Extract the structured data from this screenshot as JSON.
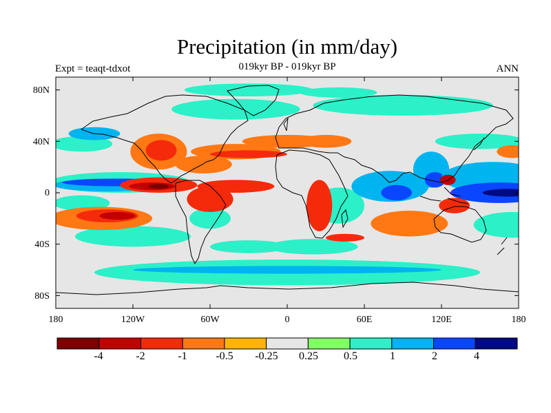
{
  "title": "Precipitation (in mm/day)",
  "subtitle": "019kyr BP - 019kyr BP",
  "left_label": "Expt = teaqt-tdxot",
  "right_label": "ANN",
  "lat_ticks": [
    "80N",
    "40N",
    "0",
    "40S",
    "80S"
  ],
  "lon_ticks": [
    "180",
    "120W",
    "60W",
    "0",
    "60E",
    "120E",
    "180"
  ],
  "colorbar": {
    "colors": [
      "#7d0000",
      "#c30000",
      "#f52a0a",
      "#ff7814",
      "#ffb400",
      "#e6e6e6",
      "#82ff64",
      "#2cf0c8",
      "#00b4f0",
      "#0a46ff",
      "#000a82"
    ],
    "labels": [
      "-4",
      "-2",
      "-1",
      "-0.5",
      "-0.25",
      "0.25",
      "0.5",
      "1",
      "2",
      "4"
    ]
  },
  "chart_data": {
    "type": "heatmap",
    "title": "Precipitation (in mm/day)",
    "subtitle": "019kyr BP - 019kyr BP",
    "experiment": "Expt = teaqt-tdxot",
    "season": "ANN",
    "x_ticks": [
      "180",
      "120W",
      "60W",
      "0",
      "60E",
      "120E",
      "180"
    ],
    "y_ticks": [
      "80N",
      "40N",
      "0",
      "40S",
      "80S"
    ],
    "xlim": [
      -180,
      180
    ],
    "ylim": [
      -90,
      90
    ],
    "levels": [
      -4,
      -2,
      -1,
      -0.5,
      -0.25,
      0.25,
      0.5,
      1,
      2,
      4
    ],
    "anomalies": [
      {
        "lon": -160,
        "lat": 38,
        "rx": 24,
        "ry": 6,
        "level": 0.5
      },
      {
        "lon": -150,
        "lat": 46,
        "rx": 20,
        "ry": 5,
        "level": 1
      },
      {
        "lon": -30,
        "lat": 80,
        "rx": 50,
        "ry": 5,
        "level": 0.5
      },
      {
        "lon": -40,
        "lat": 65,
        "rx": 50,
        "ry": 8,
        "level": 0.5
      },
      {
        "lon": 90,
        "lat": 68,
        "rx": 70,
        "ry": 8,
        "level": 0.5
      },
      {
        "lon": 40,
        "lat": 78,
        "rx": 30,
        "ry": 4,
        "level": 0.5
      },
      {
        "lon": -130,
        "lat": 8,
        "rx": 55,
        "ry": 8,
        "level": 0.5
      },
      {
        "lon": -140,
        "lat": 6,
        "rx": 42,
        "ry": 5,
        "level": 1
      },
      {
        "lon": -130,
        "lat": 8,
        "rx": 45,
        "ry": 3,
        "level": 2
      },
      {
        "lon": -100,
        "lat": 9,
        "rx": 12,
        "ry": 2,
        "level": 4
      },
      {
        "lon": -160,
        "lat": -8,
        "rx": 22,
        "ry": 6,
        "level": 0.5
      },
      {
        "lon": -120,
        "lat": -34,
        "rx": 45,
        "ry": 8,
        "level": 0.5
      },
      {
        "lon": -60,
        "lat": -20,
        "rx": 16,
        "ry": 8,
        "level": 0.5
      },
      {
        "lon": -30,
        "lat": -42,
        "rx": 30,
        "ry": 5,
        "level": 0.5
      },
      {
        "lon": 20,
        "lat": -42,
        "rx": 35,
        "ry": 6,
        "level": 0.5
      },
      {
        "lon": 40,
        "lat": -10,
        "rx": 20,
        "ry": 14,
        "level": 0.5
      },
      {
        "lon": 80,
        "lat": 5,
        "rx": 30,
        "ry": 12,
        "level": 1
      },
      {
        "lon": 85,
        "lat": 0,
        "rx": 12,
        "ry": 6,
        "level": 2
      },
      {
        "lon": 112,
        "lat": 18,
        "rx": 14,
        "ry": 14,
        "level": 1
      },
      {
        "lon": 115,
        "lat": 10,
        "rx": 8,
        "ry": 6,
        "level": 2
      },
      {
        "lon": 160,
        "lat": 12,
        "rx": 40,
        "ry": 12,
        "level": 1
      },
      {
        "lon": 165,
        "lat": 0,
        "rx": 38,
        "ry": 8,
        "level": 2
      },
      {
        "lon": 172,
        "lat": 0,
        "rx": 20,
        "ry": 3,
        "level": 4
      },
      {
        "lon": 150,
        "lat": 40,
        "rx": 35,
        "ry": 6,
        "level": 0.5
      },
      {
        "lon": 175,
        "lat": -25,
        "rx": 30,
        "ry": 10,
        "level": 0.5
      },
      {
        "lon": 0,
        "lat": -62,
        "rx": 150,
        "ry": 10,
        "level": 0.5
      },
      {
        "lon": 0,
        "lat": -60,
        "rx": 120,
        "ry": 3,
        "level": 1
      },
      {
        "lon": -100,
        "lat": 32,
        "rx": 22,
        "ry": 14,
        "level": -0.5
      },
      {
        "lon": -98,
        "lat": 33,
        "rx": 12,
        "ry": 8,
        "level": -1
      },
      {
        "lon": -65,
        "lat": 22,
        "rx": 22,
        "ry": 7,
        "level": -0.5
      },
      {
        "lon": -40,
        "lat": 32,
        "rx": 35,
        "ry": 6,
        "level": -0.5
      },
      {
        "lon": -30,
        "lat": 30,
        "rx": 30,
        "ry": 3,
        "level": -1
      },
      {
        "lon": 0,
        "lat": 40,
        "rx": 35,
        "ry": 5,
        "level": -0.5
      },
      {
        "lon": 30,
        "lat": 40,
        "rx": 20,
        "ry": 5,
        "level": -0.5
      },
      {
        "lon": -100,
        "lat": 6,
        "rx": 30,
        "ry": 6,
        "level": -1
      },
      {
        "lon": -105,
        "lat": 5,
        "rx": 18,
        "ry": 3,
        "level": -2
      },
      {
        "lon": -100,
        "lat": 5,
        "rx": 8,
        "ry": 2,
        "level": -4
      },
      {
        "lon": -40,
        "lat": 5,
        "rx": 30,
        "ry": 5,
        "level": -1
      },
      {
        "lon": -60,
        "lat": -5,
        "rx": 18,
        "ry": 10,
        "level": -1
      },
      {
        "lon": -145,
        "lat": -20,
        "rx": 40,
        "ry": 9,
        "level": -0.5
      },
      {
        "lon": -140,
        "lat": -18,
        "rx": 24,
        "ry": 5,
        "level": -1
      },
      {
        "lon": -132,
        "lat": -18,
        "rx": 14,
        "ry": 3,
        "level": -2
      },
      {
        "lon": 25,
        "lat": -10,
        "rx": 10,
        "ry": 20,
        "level": -1
      },
      {
        "lon": 45,
        "lat": -35,
        "rx": 15,
        "ry": 3,
        "level": -1
      },
      {
        "lon": 95,
        "lat": -24,
        "rx": 30,
        "ry": 10,
        "level": -0.5
      },
      {
        "lon": 130,
        "lat": -10,
        "rx": 12,
        "ry": 6,
        "level": -1
      },
      {
        "lon": 125,
        "lat": 10,
        "rx": 6,
        "ry": 4,
        "level": -2
      },
      {
        "lon": 175,
        "lat": 32,
        "rx": 12,
        "ry": 5,
        "level": -0.5
      }
    ]
  }
}
